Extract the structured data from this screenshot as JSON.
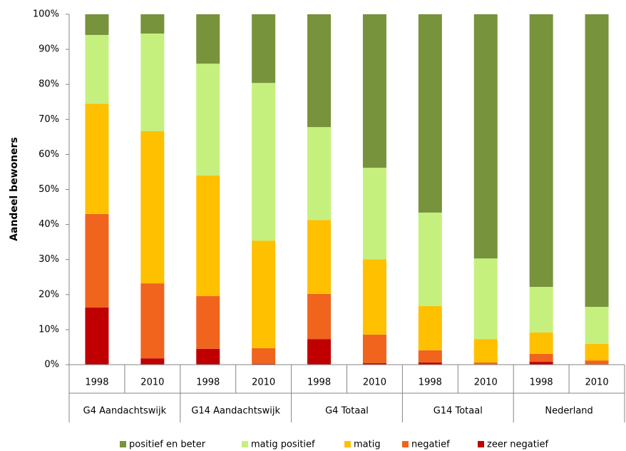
{
  "chart_data": {
    "type": "stacked-bar",
    "y_label": "Aandeel bewoners",
    "categories": [
      "1998",
      "2010",
      "1998",
      "2010",
      "1998",
      "2010",
      "1998",
      "2010",
      "1998",
      "2010"
    ],
    "groups": [
      "G4 Aandachtswijk",
      "G14 Aandachtswijk",
      "G4 Totaal",
      "G14 Totaal",
      "Nederland"
    ],
    "series": [
      {
        "name": "positief en beter",
        "color": "#77933c",
        "values": [
          5.9,
          5.5,
          14.1,
          19.6,
          32.2,
          43.8,
          56.6,
          69.7,
          77.8,
          83.5
        ]
      },
      {
        "name": "matig positief",
        "color": "#c6f07e",
        "values": [
          19.6,
          27.9,
          31.9,
          45.0,
          26.5,
          26.1,
          26.7,
          23.0,
          13.0,
          10.6
        ]
      },
      {
        "name": "matig",
        "color": "#ffc000",
        "values": [
          31.5,
          43.4,
          34.4,
          30.7,
          21.1,
          21.5,
          12.6,
          6.7,
          6.1,
          4.7
        ]
      },
      {
        "name": "negatief",
        "color": "#f0641e",
        "values": [
          26.7,
          21.4,
          15.1,
          4.5,
          12.9,
          8.2,
          3.5,
          0.5,
          2.3,
          1.1
        ]
      },
      {
        "name": "zeer negatief",
        "color": "#c00000",
        "values": [
          16.3,
          1.8,
          4.5,
          0.2,
          7.3,
          0.4,
          0.6,
          0.1,
          0.8,
          0.1
        ]
      }
    ],
    "ylim": [
      0,
      100
    ],
    "yticks": [
      {
        "value": 0,
        "label": "0%"
      },
      {
        "value": 10,
        "label": "10%"
      },
      {
        "value": 20,
        "label": "20%"
      },
      {
        "value": 30,
        "label": "30%"
      },
      {
        "value": 40,
        "label": "40%"
      },
      {
        "value": 50,
        "label": "50%"
      },
      {
        "value": 60,
        "label": "60%"
      },
      {
        "value": 70,
        "label": "70%"
      },
      {
        "value": 80,
        "label": "80%"
      },
      {
        "value": 90,
        "label": "90%"
      },
      {
        "value": 100,
        "label": "100%"
      }
    ],
    "legend": "bottom"
  }
}
